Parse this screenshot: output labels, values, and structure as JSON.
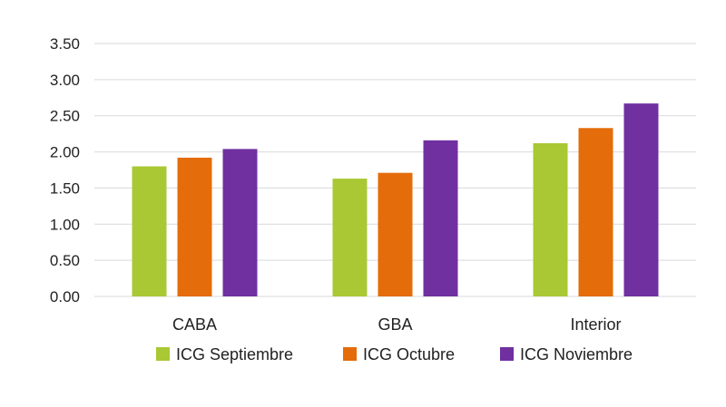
{
  "chart_data": {
    "type": "bar",
    "title": "",
    "xlabel": "",
    "ylabel": "",
    "categories": [
      "CABA",
      "GBA",
      "Interior"
    ],
    "ylim": [
      0,
      3.5
    ],
    "yticks": [
      "0.00",
      "0.50",
      "1.00",
      "1.50",
      "2.00",
      "2.50",
      "3.00",
      "3.50"
    ],
    "grid": true,
    "legend_position": "bottom",
    "series": [
      {
        "name": "ICG Septiembre",
        "color": "#a9c834",
        "values": [
          1.8,
          1.63,
          2.12
        ]
      },
      {
        "name": "ICG Octubre",
        "color": "#e46c0a",
        "values": [
          1.92,
          1.71,
          2.33
        ]
      },
      {
        "name": "ICG Noviembre",
        "color": "#7030a0",
        "values": [
          2.04,
          2.16,
          2.67
        ]
      }
    ]
  }
}
